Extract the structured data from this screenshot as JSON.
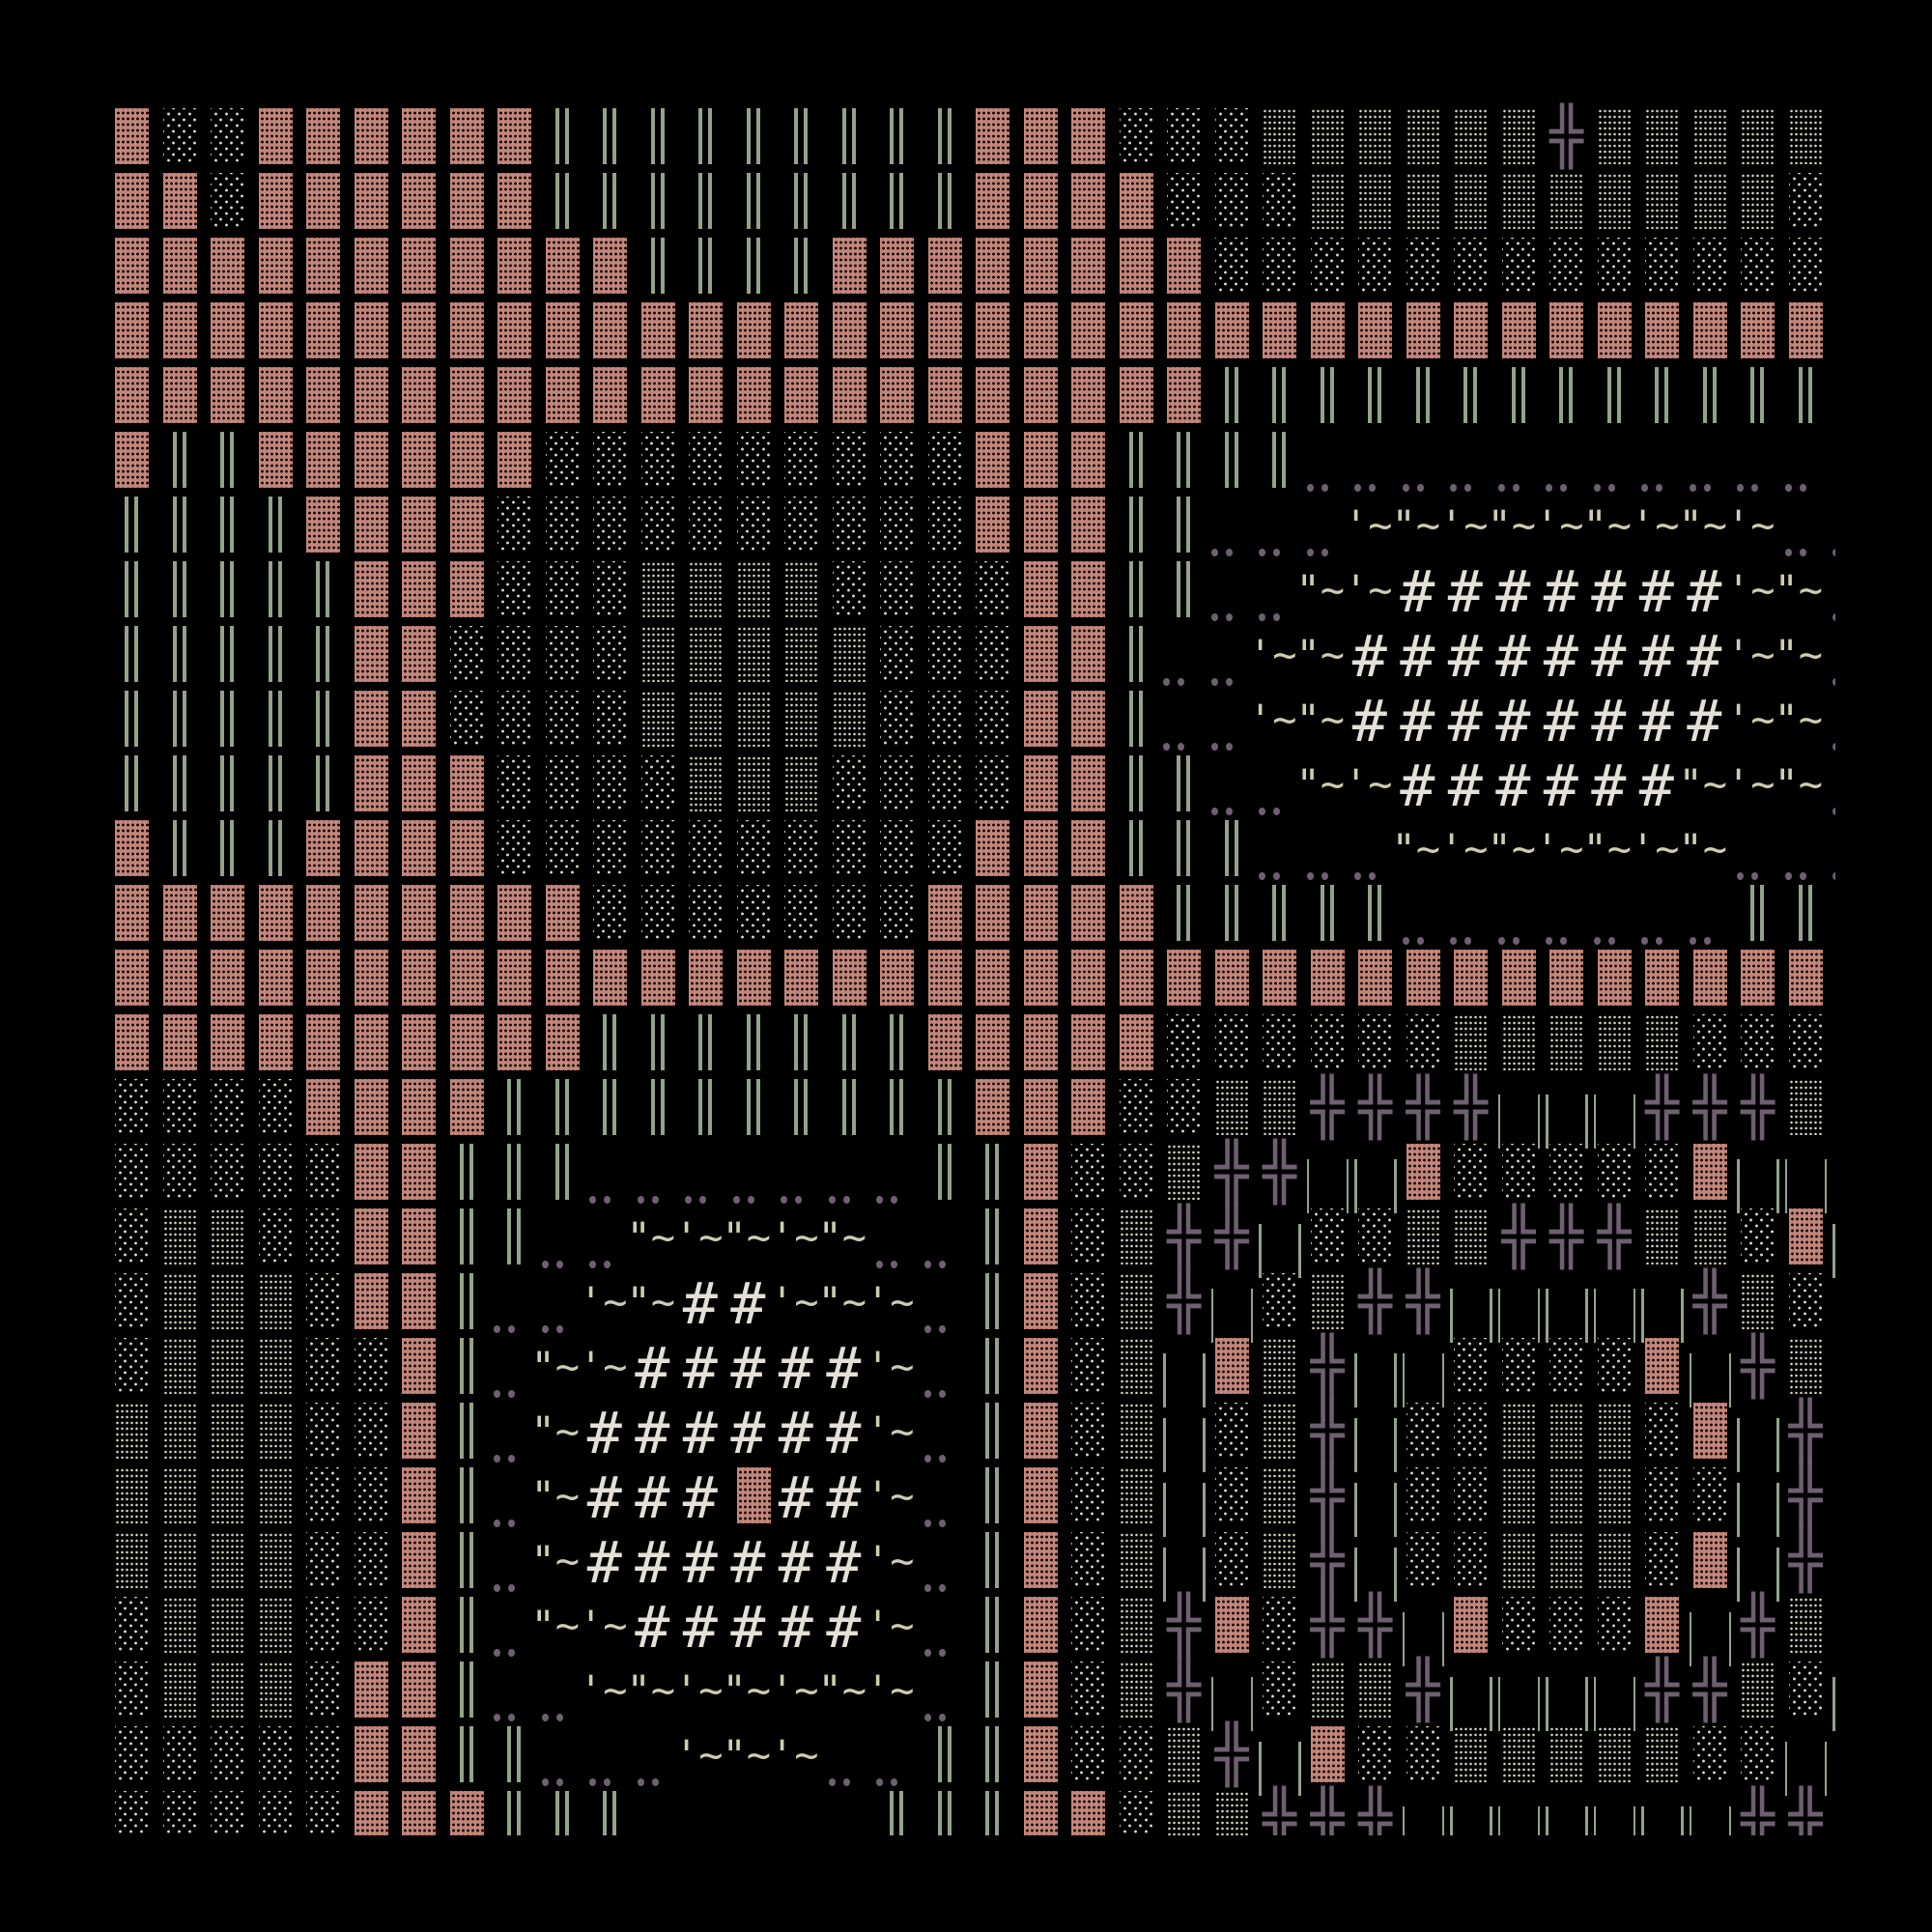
{
  "map": {
    "title": "",
    "legend": {
      "B": {
        "name": "wall-block-tile",
        "glyph": "▓",
        "color": "#c4857a"
      },
      "l": {
        "name": "light-shade-floor-tile",
        "glyph": "░",
        "color": "#dcdac4"
      },
      "m": {
        "name": "medium-shade-floor-tile",
        "glyph": "▒",
        "color": "#d4d2b8"
      },
      "W": {
        "name": "double-bar-tile",
        "glyph": "║",
        "color": "#93a38a"
      },
      "X": {
        "name": "cross-junction-tile",
        "glyph": "╬",
        "color": "#6e6070"
      },
      "P": {
        "name": "pillar-tile",
        "glyph": "| |",
        "color": "#93a38a"
      },
      "d": {
        "name": "dots-tile",
        "glyph": "‥",
        "color": "#6e6070"
      },
      "w": {
        "name": "water-tile",
        "glyph": "'~",
        "glyph_alt": "\"~",
        "color": "#cfcdb0"
      },
      "h": {
        "name": "hash-tile",
        "glyph": "#",
        "color": "#e4e0d8"
      },
      ".": {
        "name": "empty-tile",
        "glyph": " "
      }
    },
    "rows": [
      "BllBBBBBBWWWWWWWWWBBBlllmmmmmmXmmmmml",
      "BBlBBBBBBWWWWWWWWWBBBBlllmmmmmmmmmmll",
      "BBBBBBBBBBBWWWWBBBBBBBBllllllllllllll",
      "BBBBBBBBBBBBBBBBBBBBBBBBBBBBBBBBBBBBB",
      "BBBBBBBBBBBBBBBBBBBBBBBWWWWWWWWWWWWW.",
      "BWWBBBBBBlllllllllBBBWWWWddddddddddd.",
      "WWWWBBBBllllllllllBBBWWdddwwwwwwwwwdd",
      "WWWWWBBBlllmmmmllllBBWWddwwhhhhhhhwwd",
      "WWWWWBBllllmmmmmlllBBWddwwhhhhhhhhwwd",
      "WWWWWBBllllmmmmmlllBBWddwwhhhhhhhhwwd",
      "WWWWWBBBllllmmmllllBBWWddwwhhhhhhwwwd",
      "BWWWBBBBllllllllllBBBWWWdddwwwwwwwddd",
      "BBBBBBBBBBlllllllBBBBBWWWWWdddddddWW.",
      "BBBBBBBBBBBBBBBBBBBBBBBBBBBBBBBBBBBBB",
      "BBBBBBBBBBWWWWWWWBBBBBllllllmmmmmllll",
      "llllBBBBWWWWWWWWWWBBBllmmXXXXPPPXXXmm",
      "lllllBBWWWdddddddWWBllmXXPPBlllllBPPX",
      "lmmllBBWWddwwwwwddWBlmXXPllmmXXXmmlBP",
      "lmmmlBBWddwwhhwwwdWBlmXPlmXXPPPPPXmlB",
      "lmmmllBWdwwhhhhhwdWBlmPBmXPPllllBPXml",
      "mmmmllBWdwhhhhhhwdWBlmPlmXPllmmmlBPXl",
      "mmmmllBWdwhhhBhhwdWBlmPlmXPllmmmllPXl",
      "mmmmllBWdwhhhhhhwdWBlmPlmXPllmmmlBPXl",
      "lmmmllBWdwwhhhhhwdWBlmXBlXXPBlllBPXml",
      "lmmmlBBWddwwwwwwwdWBlmXPlmmXPPPPXXmlP",
      "lllllBBWWdddwwwddWWBllmXPBllmmmmmllPX",
      "lllllBBBWWW.....WWWBBlmmXXXPPPPPPPXXm"
    ]
  }
}
